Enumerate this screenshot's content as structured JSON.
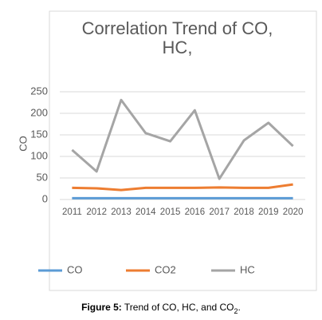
{
  "chart_data": {
    "type": "line",
    "title": "Correlation Trend of CO, HC,",
    "y_label": "CO",
    "categories": [
      "2011",
      "2012",
      "2013",
      "2014",
      "2015",
      "2016",
      "2017",
      "2018",
      "2019",
      "2020"
    ],
    "series": [
      {
        "name": "CO",
        "color": "#5b9bd5",
        "values": [
          3,
          3,
          3,
          3,
          3,
          3,
          3,
          3,
          3,
          3
        ]
      },
      {
        "name": "CO2",
        "color": "#ed7d31",
        "values": [
          27,
          26,
          22,
          27,
          27,
          27,
          28,
          27,
          27,
          35
        ]
      },
      {
        "name": "HC",
        "color": "#a5a5a5",
        "values": [
          115,
          65,
          231,
          154,
          135,
          207,
          48,
          137,
          178,
          124
        ]
      }
    ],
    "ylim": [
      0,
      250
    ],
    "yticks": [
      0,
      50,
      100,
      150,
      200,
      250
    ],
    "grid": true,
    "legend": "bottom"
  },
  "caption": {
    "label": "Figure 5:",
    "text": " Trend of CO, HC, and CO",
    "subscript": "2",
    "end": "."
  }
}
